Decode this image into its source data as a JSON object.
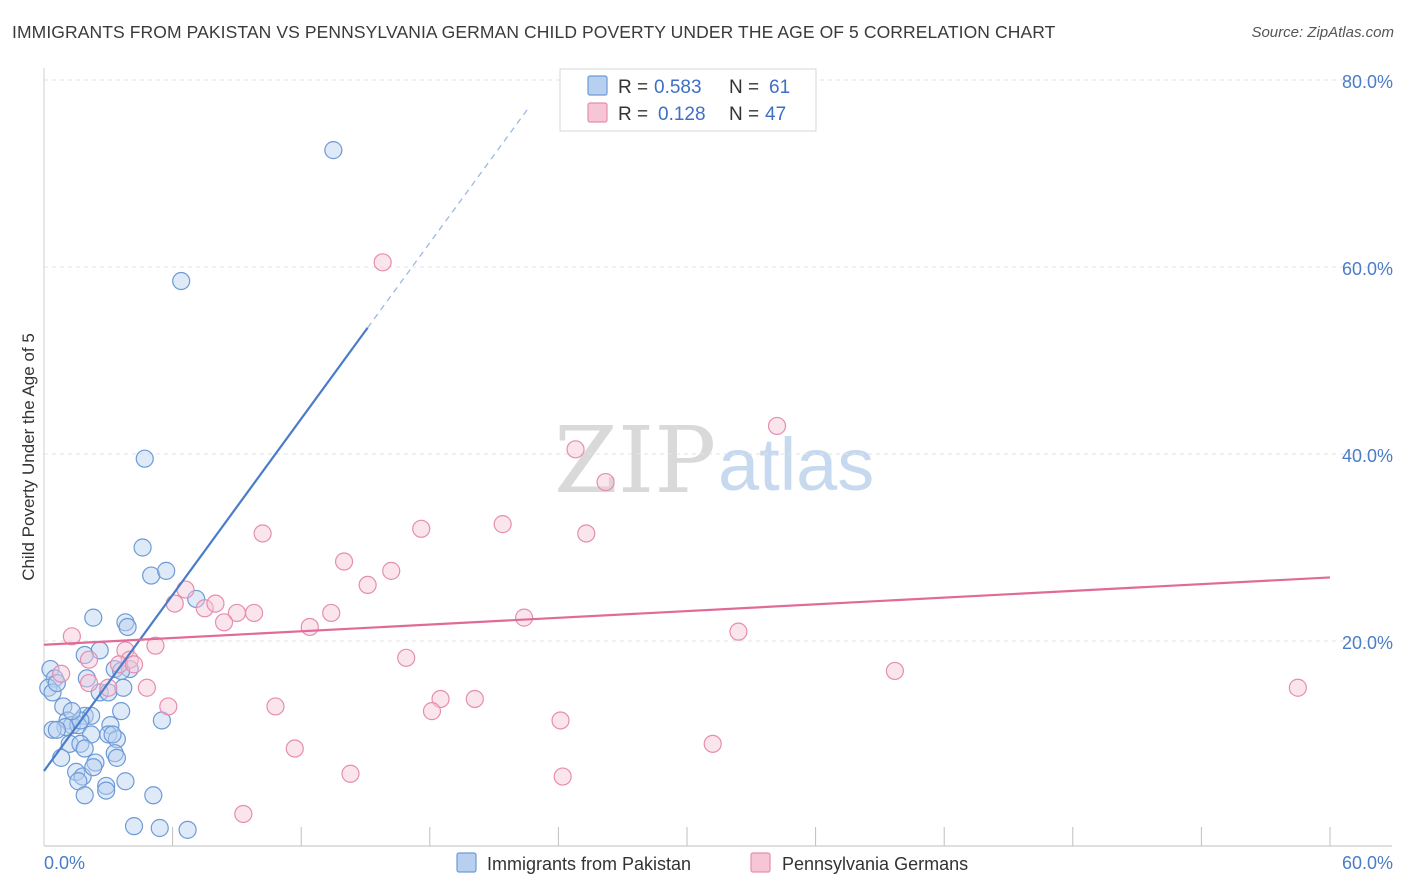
{
  "title": "IMMIGRANTS FROM PAKISTAN VS PENNSYLVANIA GERMAN CHILD POVERTY UNDER THE AGE OF 5 CORRELATION CHART",
  "source": "Source: ZipAtlas.com",
  "colors": {
    "blue": "#4a7cc8",
    "blue_fill": "#b8d0f0",
    "pink": "#e06b98",
    "pink_fill": "#f7c6d6",
    "tick_blue": "#4a7cc8"
  },
  "chart_data": {
    "type": "scatter",
    "title": "IMMIGRANTS FROM PAKISTAN VS PENNSYLVANIA GERMAN CHILD POVERTY UNDER THE AGE OF 5 CORRELATION CHART",
    "xlabel": "",
    "ylabel": "Child Poverty Under the Age of 5",
    "xlim": [
      0,
      60
    ],
    "ylim": [
      0,
      80
    ],
    "x_tick_labels": [
      "0.0%",
      "60.0%"
    ],
    "y_ticks": [
      20,
      40,
      60,
      80
    ],
    "y_tick_labels": [
      "20.0%",
      "40.0%",
      "60.0%",
      "80.0%"
    ],
    "watermark": {
      "zip": "ZIP",
      "atlas": "atlas"
    },
    "legend": {
      "entries": [
        {
          "r_label": "R =",
          "r_value": "0.583",
          "n_label": "N =",
          "n_value": "61"
        },
        {
          "r_label": "R =",
          "r_value": "0.128",
          "n_label": "N =",
          "n_value": "47"
        }
      ]
    },
    "series": [
      {
        "name": "Immigrants from Pakistan",
        "color": "#4a7cc8",
        "trend": {
          "x1": 0,
          "y1": 6.1,
          "x2": 15.1,
          "y2": 53.5,
          "dash_to_x": 22.6,
          "dash_to_y": 77.0
        },
        "points": [
          [
            13.5,
            72.5
          ],
          [
            6.4,
            58.5
          ],
          [
            4.7,
            39.5
          ],
          [
            4.6,
            30.0
          ],
          [
            5.0,
            27.0
          ],
          [
            5.7,
            27.5
          ],
          [
            7.1,
            24.5
          ],
          [
            2.3,
            22.5
          ],
          [
            3.8,
            22.0
          ],
          [
            3.9,
            21.5
          ],
          [
            2.6,
            19.0
          ],
          [
            1.9,
            18.5
          ],
          [
            3.3,
            17.0
          ],
          [
            4.0,
            17.0
          ],
          [
            3.6,
            16.8
          ],
          [
            2.0,
            16.0
          ],
          [
            0.3,
            17.0
          ],
          [
            0.5,
            16.0
          ],
          [
            0.2,
            15.0
          ],
          [
            0.4,
            14.5
          ],
          [
            2.6,
            14.5
          ],
          [
            3.0,
            14.5
          ],
          [
            3.7,
            15.0
          ],
          [
            0.9,
            13.0
          ],
          [
            1.9,
            12.0
          ],
          [
            2.2,
            12.0
          ],
          [
            3.6,
            12.5
          ],
          [
            1.1,
            11.5
          ],
          [
            1.3,
            11.0
          ],
          [
            1.6,
            11.0
          ],
          [
            1.0,
            10.8
          ],
          [
            1.7,
            11.5
          ],
          [
            0.4,
            10.5
          ],
          [
            0.6,
            10.5
          ],
          [
            5.5,
            11.5
          ],
          [
            3.1,
            11.0
          ],
          [
            2.2,
            10.0
          ],
          [
            3.0,
            10.0
          ],
          [
            3.4,
            9.5
          ],
          [
            3.2,
            10.0
          ],
          [
            1.2,
            9.0
          ],
          [
            1.7,
            9.0
          ],
          [
            1.9,
            8.5
          ],
          [
            3.3,
            8.0
          ],
          [
            0.8,
            7.5
          ],
          [
            2.4,
            7.0
          ],
          [
            3.4,
            7.5
          ],
          [
            1.5,
            6.0
          ],
          [
            1.8,
            5.5
          ],
          [
            2.3,
            6.5
          ],
          [
            3.8,
            5.0
          ],
          [
            1.6,
            5.0
          ],
          [
            2.9,
            4.5
          ],
          [
            2.9,
            4.0
          ],
          [
            1.9,
            3.5
          ],
          [
            5.1,
            3.5
          ],
          [
            4.2,
            0.2
          ],
          [
            5.4,
            0.0
          ],
          [
            6.7,
            -0.2
          ],
          [
            0.6,
            15.5
          ],
          [
            1.3,
            12.5
          ]
        ]
      },
      {
        "name": "Pennsylvania Germans",
        "color": "#e06b98",
        "trend": {
          "x1": 0,
          "y1": 19.6,
          "x2": 60,
          "y2": 26.8
        },
        "points": [
          [
            15.8,
            60.5
          ],
          [
            34.2,
            43.0
          ],
          [
            24.8,
            40.5
          ],
          [
            26.2,
            37.0
          ],
          [
            17.6,
            32.0
          ],
          [
            21.4,
            32.5
          ],
          [
            25.3,
            31.5
          ],
          [
            10.2,
            31.5
          ],
          [
            14.0,
            28.5
          ],
          [
            16.2,
            27.5
          ],
          [
            15.1,
            26.0
          ],
          [
            6.6,
            25.5
          ],
          [
            6.1,
            24.0
          ],
          [
            7.5,
            23.5
          ],
          [
            8.0,
            24.0
          ],
          [
            9.0,
            23.0
          ],
          [
            9.8,
            23.0
          ],
          [
            13.4,
            23.0
          ],
          [
            22.4,
            22.5
          ],
          [
            8.4,
            22.0
          ],
          [
            12.4,
            21.5
          ],
          [
            32.4,
            21.0
          ],
          [
            1.3,
            20.5
          ],
          [
            5.2,
            19.5
          ],
          [
            3.8,
            19.0
          ],
          [
            2.1,
            18.0
          ],
          [
            4.0,
            18.0
          ],
          [
            16.9,
            18.2
          ],
          [
            3.5,
            17.5
          ],
          [
            4.2,
            17.5
          ],
          [
            0.8,
            16.5
          ],
          [
            39.7,
            16.8
          ],
          [
            2.1,
            15.5
          ],
          [
            3.0,
            15.0
          ],
          [
            4.8,
            15.0
          ],
          [
            58.5,
            15.0
          ],
          [
            18.5,
            13.8
          ],
          [
            20.1,
            13.8
          ],
          [
            5.8,
            13.0
          ],
          [
            10.8,
            13.0
          ],
          [
            18.1,
            12.5
          ],
          [
            24.1,
            11.5
          ],
          [
            11.7,
            8.5
          ],
          [
            31.2,
            9.0
          ],
          [
            14.3,
            5.8
          ],
          [
            24.2,
            5.5
          ],
          [
            9.3,
            1.5
          ]
        ]
      }
    ]
  }
}
